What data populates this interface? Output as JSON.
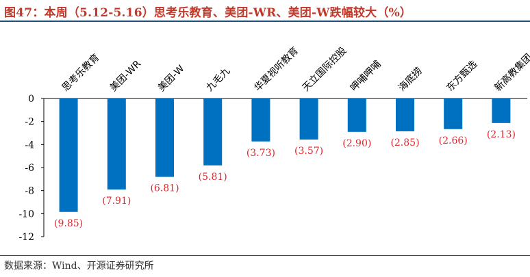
{
  "title": "图47：本周（5.12-5.16）思考乐教育、美团-WR、美团-W跌幅较大（%）",
  "source": "数据来源：Wind、开源证券研究所",
  "colors": {
    "bar": "#0070c0",
    "label": "#e3242b",
    "title": "#c0392b",
    "rule": "#1f4e79"
  },
  "chart_data": {
    "type": "bar",
    "categories": [
      "思考乐教育",
      "美团-WR",
      "美团-W",
      "九毛九",
      "华夏视听教育",
      "天立国际控股",
      "呷哺呷哺",
      "海底捞",
      "东方甄选",
      "新高教集团"
    ],
    "values": [
      -9.85,
      -7.91,
      -6.81,
      -5.81,
      -3.73,
      -3.57,
      -2.9,
      -2.85,
      -2.66,
      -2.13
    ],
    "data_labels": [
      "(9.85)",
      "(7.91)",
      "(6.81)",
      "(5.81)",
      "(3.73)",
      "(3.57)",
      "(2.90)",
      "(2.85)",
      "(2.66)",
      "(2.13)"
    ],
    "y_ticks": [
      "0",
      "-2",
      "-4",
      "-6",
      "-8",
      "-10",
      "-12"
    ],
    "ylim": [
      -12,
      0
    ],
    "grid": false,
    "xlabel": "",
    "ylabel": ""
  }
}
